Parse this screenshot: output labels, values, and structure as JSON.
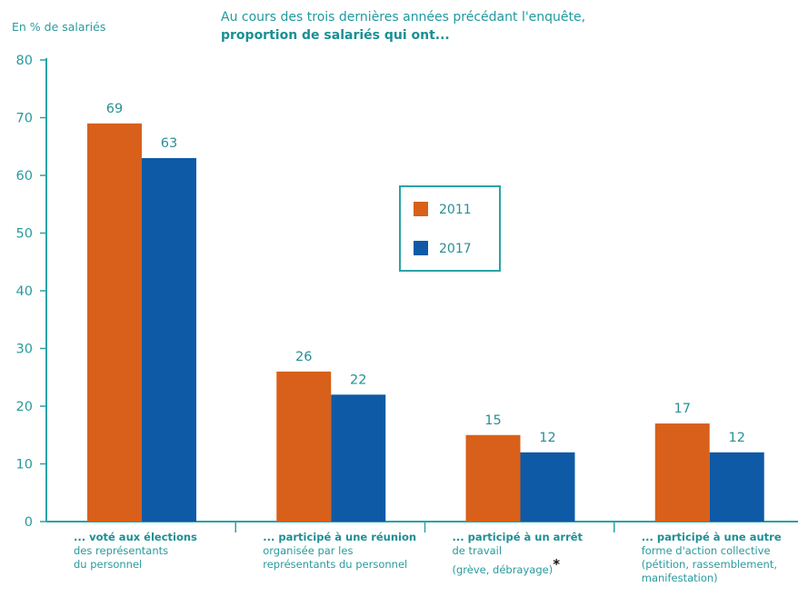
{
  "header": {
    "unit_label": "En % de salariés",
    "title_line1": "Au cours des trois dernières années précédant l'enquête,",
    "title_line2": "proportion de salariés qui ont..."
  },
  "colors": {
    "series_2011": "#d8601a",
    "series_2017": "#0e5aa6",
    "axis": "#2aa3a6",
    "text": "#2a9a9c"
  },
  "chart_data": {
    "type": "bar",
    "ylim": [
      0,
      80
    ],
    "yticks": [
      0,
      10,
      20,
      30,
      40,
      50,
      60,
      70,
      80
    ],
    "grid": false,
    "legend_position": "center-top",
    "categories": [
      {
        "head": "... voté aux élections",
        "sub": [
          "des représentants",
          "du personnel"
        ]
      },
      {
        "head": "... participé à une réunion",
        "sub": [
          "organisée par les",
          "représentants du personnel"
        ]
      },
      {
        "head": "... participé à un arrêt",
        "sub": [
          "de travail",
          "(grève, débrayage)"
        ],
        "star": "*"
      },
      {
        "head": "... participé à une autre",
        "sub": [
          "forme d'action collective",
          "(pétition, rassemblement,",
          "manifestation)"
        ]
      }
    ],
    "series": [
      {
        "name": "2011",
        "values": [
          69,
          26,
          15,
          17
        ]
      },
      {
        "name": "2017",
        "values": [
          63,
          22,
          12,
          12
        ]
      }
    ]
  }
}
